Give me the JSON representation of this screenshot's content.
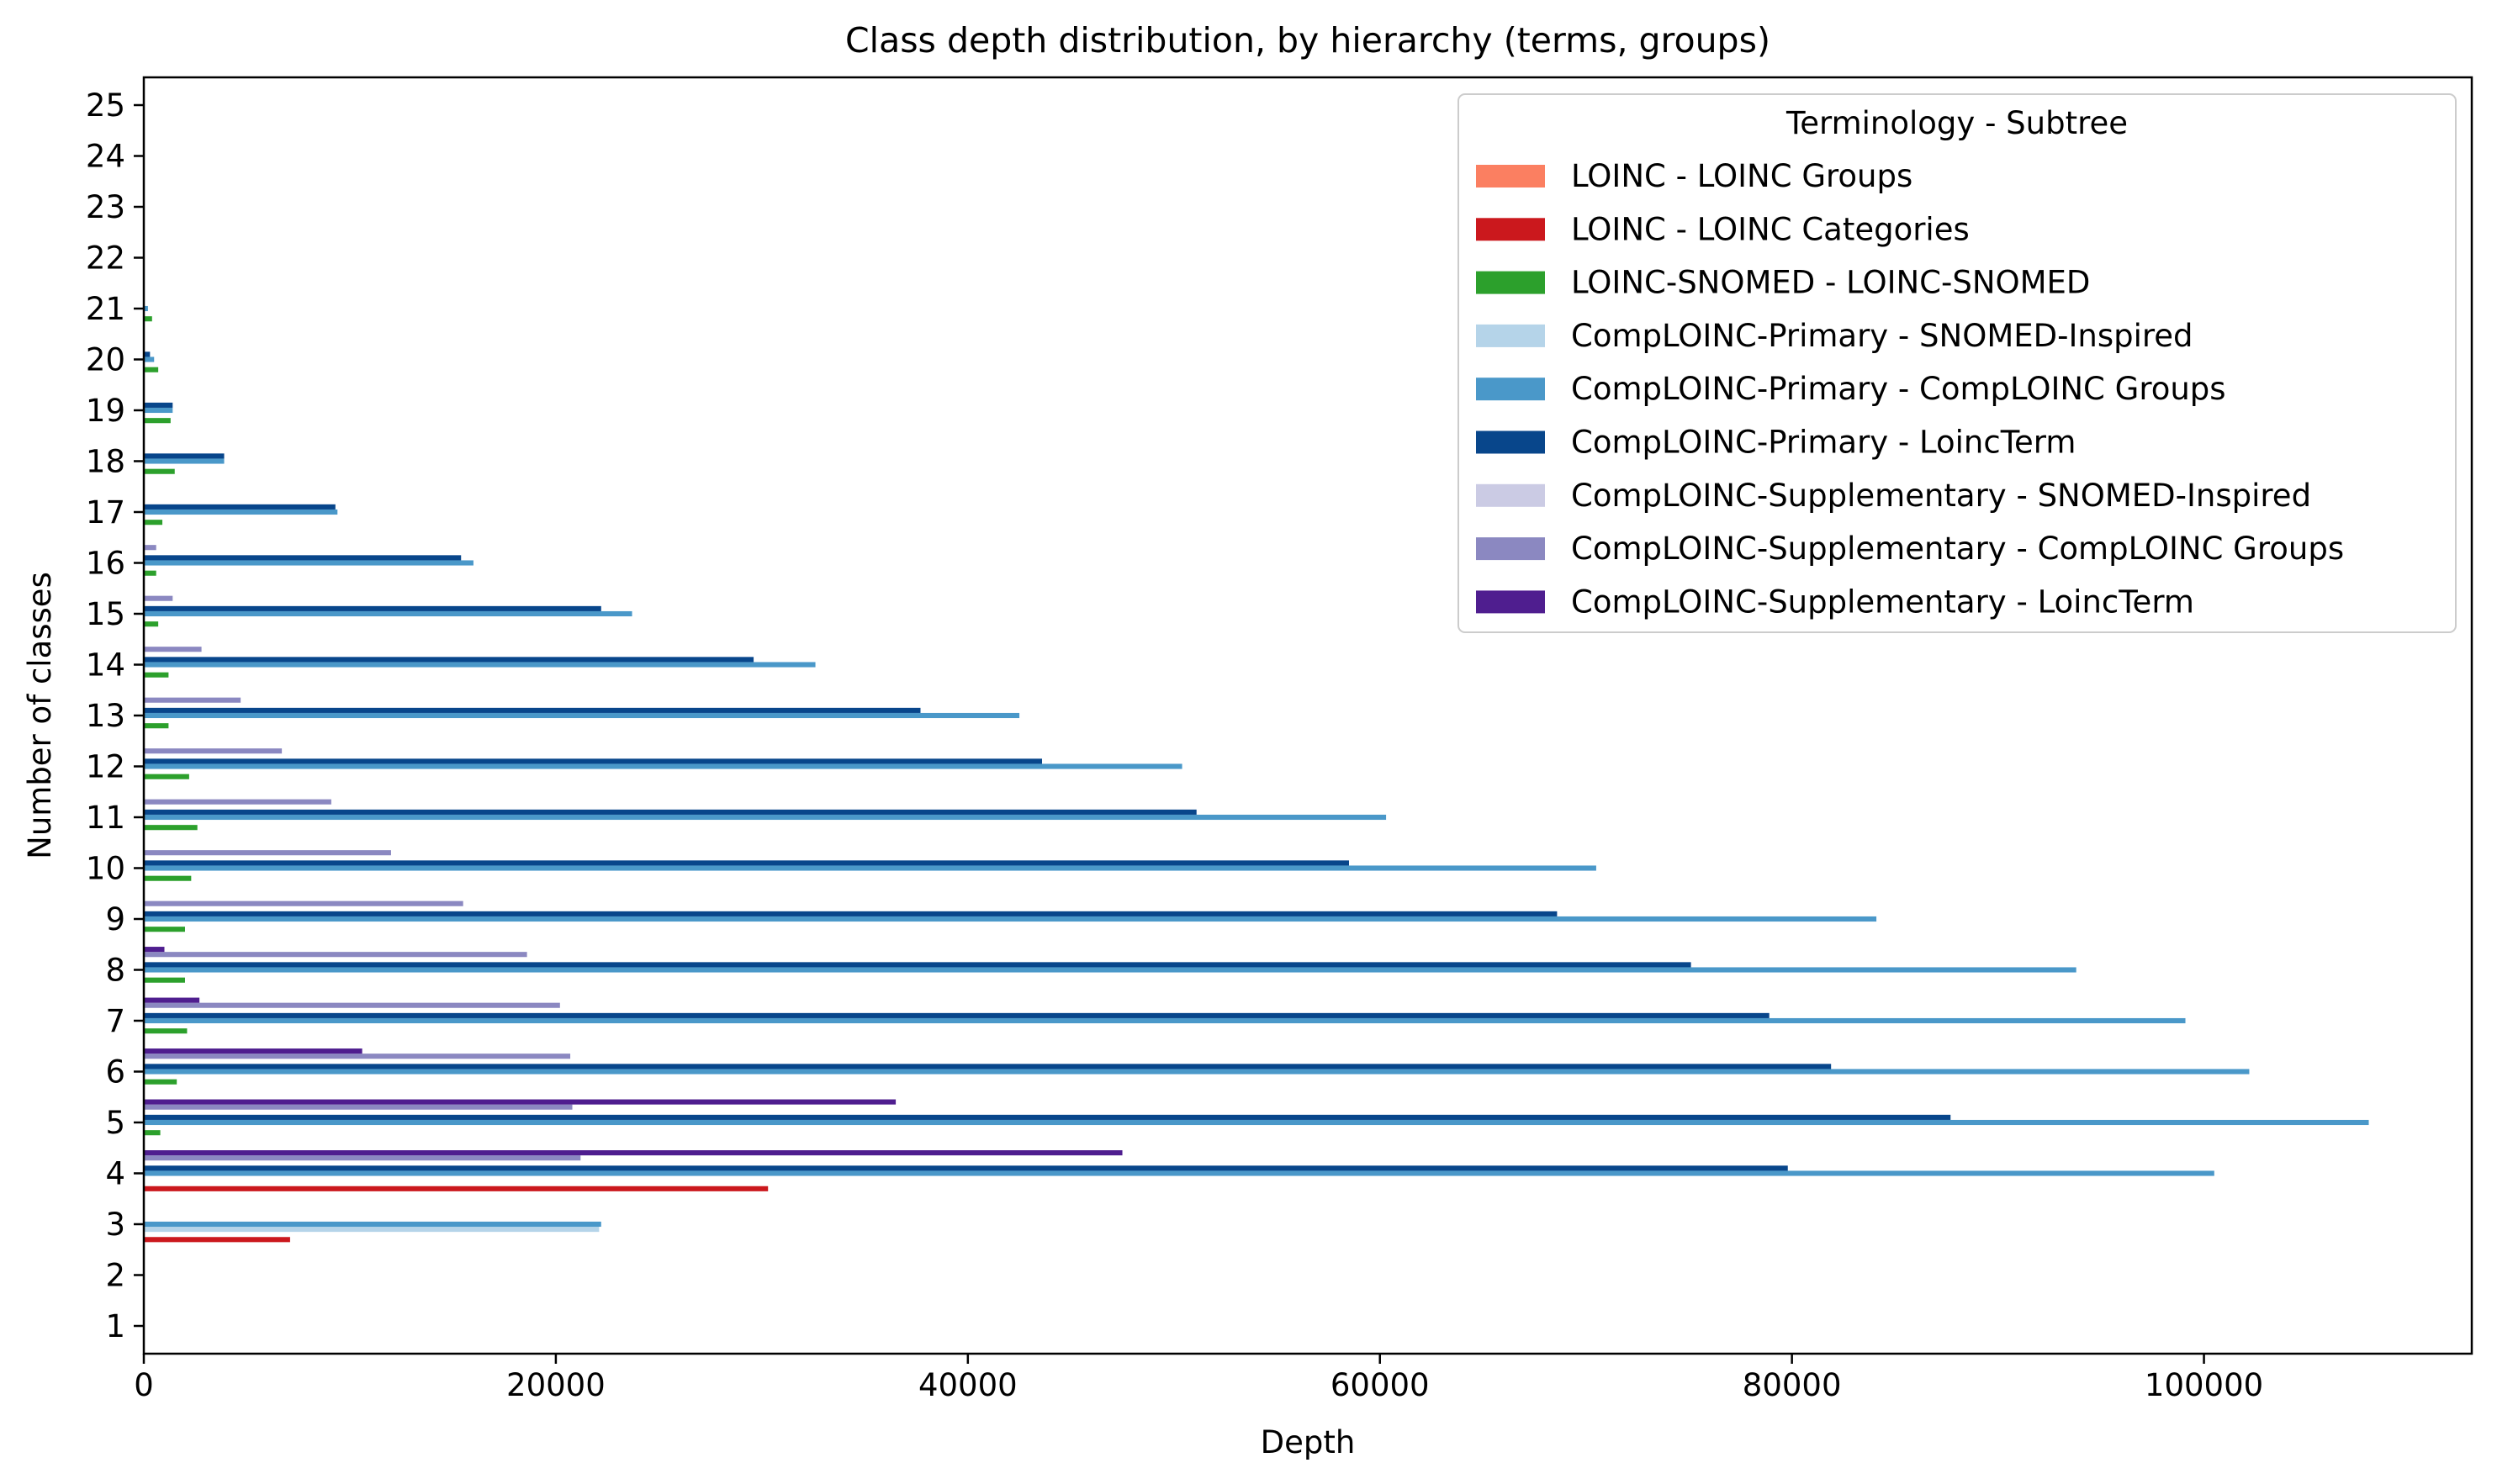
{
  "chart_data": {
    "type": "bar",
    "orientation": "horizontal",
    "title": "Class depth distribution, by hierarchy (terms, groups)",
    "xlabel": "Depth",
    "ylabel": "Number of classes",
    "xlim": [
      0,
      113000
    ],
    "x_ticks": [
      0,
      20000,
      40000,
      60000,
      80000,
      100000
    ],
    "categories": [
      "1",
      "2",
      "3",
      "4",
      "5",
      "6",
      "7",
      "8",
      "9",
      "10",
      "11",
      "12",
      "13",
      "14",
      "15",
      "16",
      "17",
      "18",
      "19",
      "20",
      "21",
      "22",
      "23",
      "24",
      "25"
    ],
    "grid": false,
    "legend": {
      "title": "Terminology - Subtree",
      "placement": "top-right"
    },
    "series": [
      {
        "name": "LOINC - LOINC Groups",
        "color": "#fb7f61",
        "values": [
          0,
          0,
          0,
          0,
          0,
          0,
          0,
          0,
          0,
          0,
          0,
          0,
          0,
          0,
          0,
          0,
          0,
          0,
          0,
          0,
          0,
          0,
          0,
          0,
          0
        ]
      },
      {
        "name": "LOINC - LOINC Categories",
        "color": "#cb181d",
        "values": [
          0,
          0,
          7100,
          30300,
          0,
          0,
          0,
          0,
          0,
          0,
          0,
          0,
          0,
          0,
          0,
          0,
          0,
          0,
          0,
          0,
          0,
          0,
          0,
          0,
          0
        ]
      },
      {
        "name": "LOINC-SNOMED - LOINC-SNOMED",
        "color": "#2ca02c",
        "values": [
          0,
          0,
          0,
          0,
          800,
          1600,
          2100,
          2000,
          2000,
          2300,
          2600,
          2200,
          1200,
          1200,
          700,
          600,
          900,
          1500,
          1300,
          700,
          400,
          0,
          0,
          0,
          0
        ]
      },
      {
        "name": "CompLOINC-Primary - SNOMED-Inspired",
        "color": "#b5d4e9",
        "values": [
          0,
          0,
          22100,
          0,
          0,
          0,
          0,
          0,
          0,
          0,
          0,
          0,
          0,
          0,
          0,
          0,
          0,
          0,
          0,
          0,
          0,
          0,
          0,
          0,
          0
        ]
      },
      {
        "name": "CompLOINC-Primary - CompLOINC Groups",
        "color": "#4a98c9",
        "values": [
          0,
          0,
          22200,
          100500,
          108000,
          102200,
          99100,
          93800,
          84100,
          70500,
          60300,
          50400,
          42500,
          32600,
          23700,
          16000,
          9400,
          3900,
          1400,
          500,
          200,
          0,
          0,
          0,
          0
        ]
      },
      {
        "name": "CompLOINC-Primary - LoincTerm",
        "color": "#08468b",
        "values": [
          0,
          0,
          0,
          79800,
          87700,
          81900,
          78900,
          75100,
          68600,
          58500,
          51100,
          43600,
          37700,
          29600,
          22200,
          15400,
          9300,
          3900,
          1400,
          300,
          0,
          0,
          0,
          0,
          0
        ]
      },
      {
        "name": "CompLOINC-Supplementary - SNOMED-Inspired",
        "color": "#cbcbe4",
        "values": [
          0,
          0,
          0,
          0,
          0,
          0,
          0,
          0,
          0,
          0,
          0,
          0,
          0,
          0,
          0,
          0,
          0,
          0,
          0,
          0,
          0,
          0,
          0,
          0,
          0
        ]
      },
      {
        "name": "CompLOINC-Supplementary - CompLOINC Groups",
        "color": "#8b88c1",
        "values": [
          0,
          0,
          0,
          21200,
          20800,
          20700,
          20200,
          18600,
          15500,
          12000,
          9100,
          6700,
          4700,
          2800,
          1400,
          600,
          0,
          0,
          0,
          0,
          0,
          0,
          0,
          0,
          0
        ]
      },
      {
        "name": "CompLOINC-Supplementary - LoincTerm",
        "color": "#4f1e8f",
        "values": [
          0,
          0,
          0,
          47500,
          36500,
          10600,
          2700,
          1000,
          0,
          0,
          0,
          0,
          0,
          0,
          0,
          0,
          0,
          0,
          0,
          0,
          0,
          0,
          0,
          0,
          0
        ]
      }
    ]
  }
}
